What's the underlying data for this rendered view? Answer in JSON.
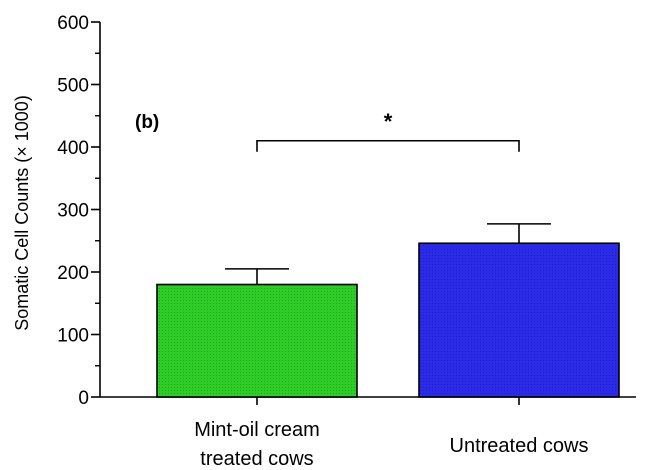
{
  "chart_data": {
    "type": "bar",
    "panel_label": "(b)",
    "ylabel": "Somatic Cell Counts (× 1000)",
    "ylim": [
      0,
      600
    ],
    "yticks": [
      0,
      100,
      200,
      300,
      400,
      500,
      600
    ],
    "categories": [
      [
        "Mint-oil cream",
        "treated cows"
      ],
      [
        "Untreated cows"
      ]
    ],
    "values": [
      180,
      246
    ],
    "error_upper": [
      205,
      277
    ],
    "colors": [
      "#2ecc27",
      "#2a2ae8"
    ],
    "significance": {
      "label": "*",
      "between": [
        0,
        1
      ],
      "y": 410
    }
  }
}
